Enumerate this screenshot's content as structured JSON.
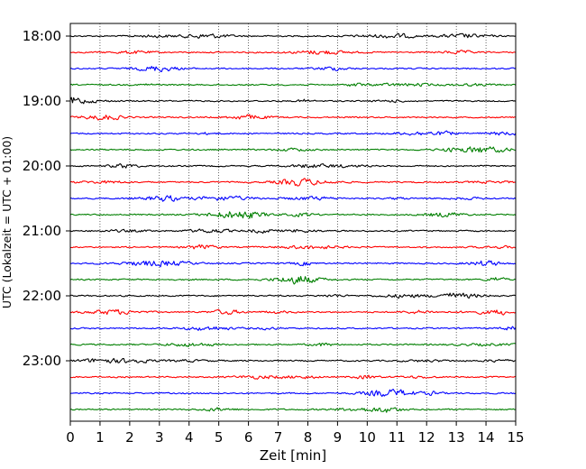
{
  "chart_data": {
    "type": "line",
    "title": "",
    "xlabel": "Zeit  [min]",
    "ylabel": "UTC (Lokalzeit = UTC + 01:00)",
    "xlim": [
      0,
      15
    ],
    "x_ticks": [
      "0",
      "1",
      "2",
      "3",
      "4",
      "5",
      "6",
      "7",
      "8",
      "9",
      "10",
      "11",
      "12",
      "13",
      "14",
      "15"
    ],
    "y_ticks": [
      "18:00",
      "19:00",
      "20:00",
      "21:00",
      "22:00",
      "23:00"
    ],
    "grid": "vertical dotted lines at each minute",
    "trace_start": "18:00",
    "trace_interval_minutes": 15,
    "trace_count": 24,
    "trace_colors": [
      "#000000",
      "#ff0000",
      "#0000ff",
      "#007f00"
    ],
    "signal": "low-amplitude seismic noise"
  }
}
